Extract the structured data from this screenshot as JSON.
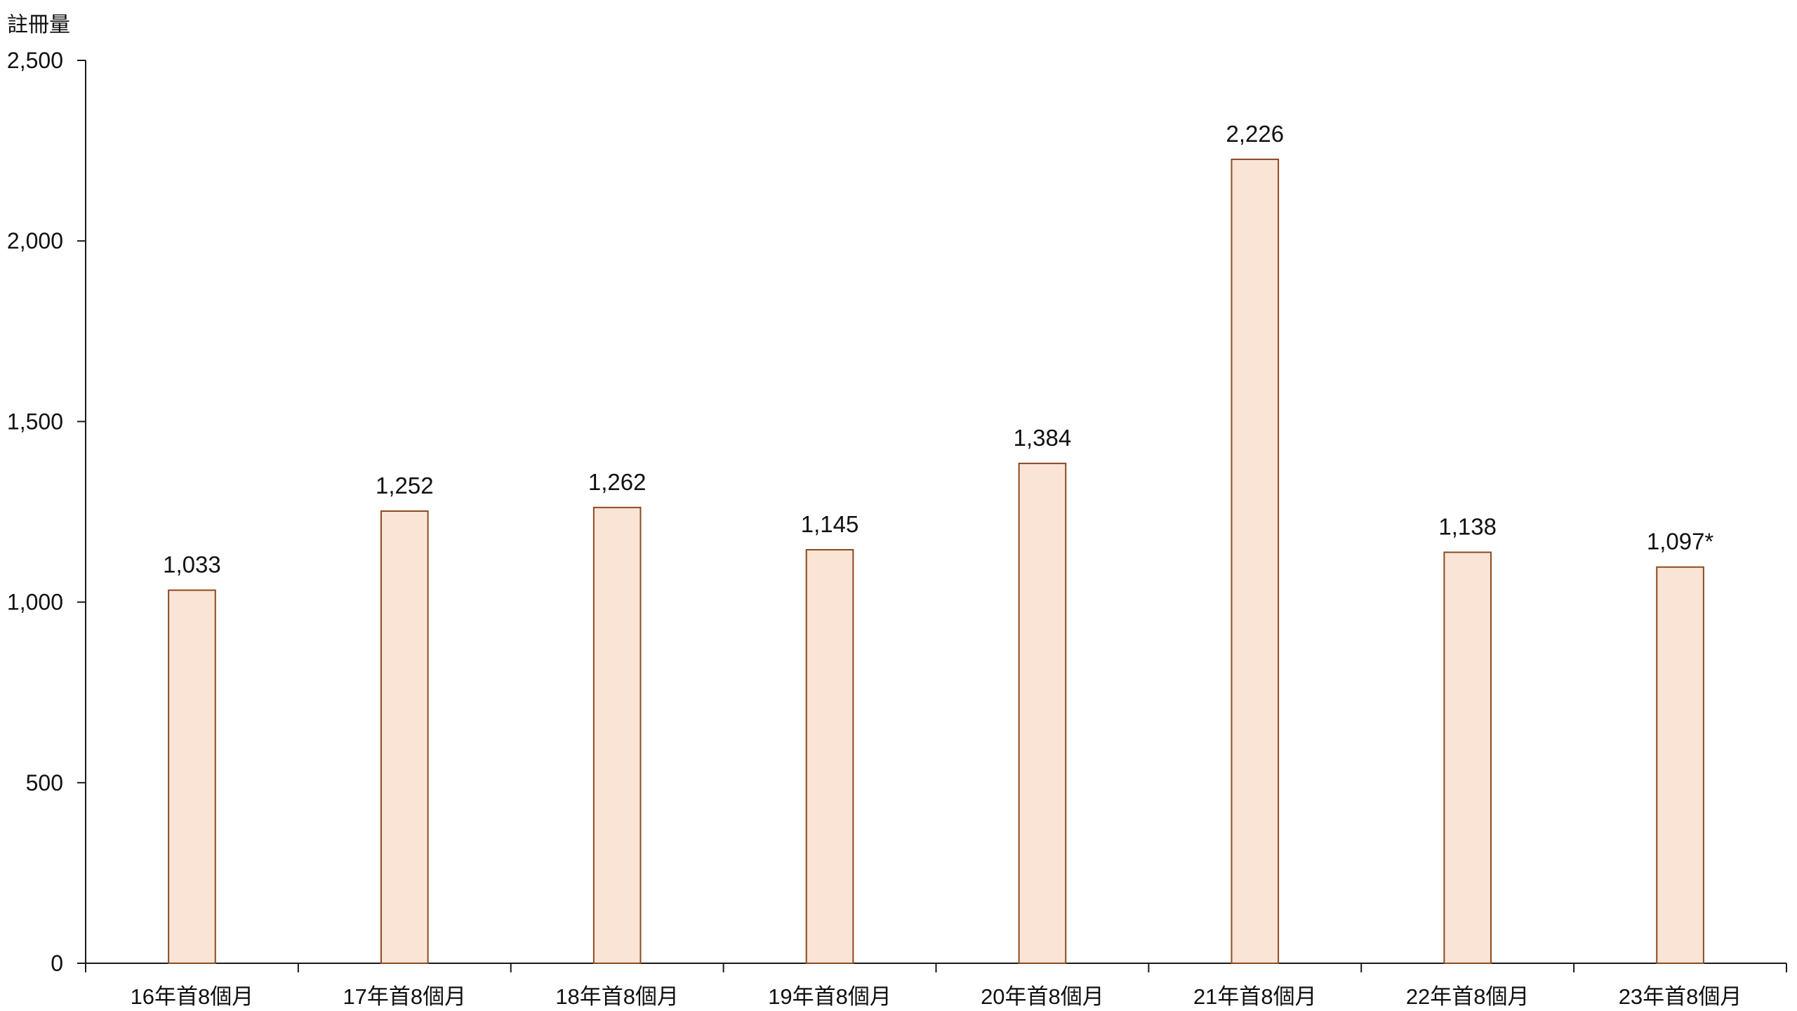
{
  "chart_data": {
    "type": "bar",
    "ylabel": "註冊量",
    "xlabel": "",
    "ylim": [
      0,
      2500
    ],
    "yticks": [
      0,
      500,
      1000,
      1500,
      2000,
      2500
    ],
    "ytick_labels": [
      "0",
      "500",
      "1,000",
      "1,500",
      "2,000",
      "2,500"
    ],
    "grid": false,
    "legend": "none",
    "categories": [
      "16年首8個月",
      "17年首8個月",
      "18年首8個月",
      "19年首8個月",
      "20年首8個月",
      "21年首8個月",
      "22年首8個月",
      "23年首8個月"
    ],
    "values": [
      1033,
      1252,
      1262,
      1145,
      1384,
      2226,
      1138,
      1097
    ],
    "data_labels": [
      "1,033",
      "1,252",
      "1,262",
      "1,145",
      "1,384",
      "2,226",
      "1,138",
      "1,097*"
    ],
    "colors": {
      "bar_fill": "#fae4d6",
      "bar_stroke": "#8b4a22",
      "axis": "#1a1a1a"
    }
  }
}
